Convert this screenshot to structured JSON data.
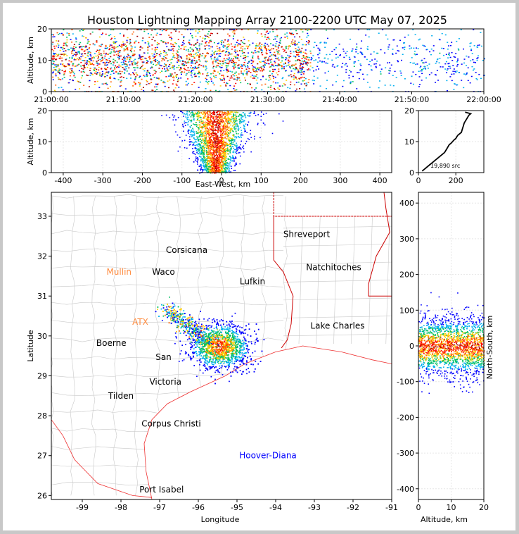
{
  "title": "Houston Lightning Mapping Array 2100-2200 UTC May 07, 2025",
  "colors": {
    "frame_bg": "#c8c8c8",
    "axes": "#000000",
    "grid": "#e6e6e6",
    "county": "#c8c8c8",
    "state_border": "#cc0000",
    "coast": "#ee3030",
    "city_default": "#000000",
    "city_highlight": "#ff8c40",
    "city_special": "#0000ff",
    "source_palette": [
      "#0000ff",
      "#00b0f0",
      "#00c060",
      "#ffd000",
      "#ff6000",
      "#ff0000",
      "#a00000"
    ]
  },
  "chart_data": [
    {
      "type": "scatter",
      "id": "time_altitude",
      "xlabel": "",
      "ylabel": "Altitude, km",
      "xticks": [
        "21:00:00",
        "21:10:00",
        "21:20:00",
        "21:30:00",
        "21:40:00",
        "21:50:00",
        "22:00:00"
      ],
      "xlim_minutes": [
        0,
        60
      ],
      "ylim": [
        0,
        20
      ],
      "yticks": [
        0,
        10,
        20
      ],
      "activity_bands_minutes": [
        [
          0,
          36
        ],
        [
          36,
          60
        ]
      ],
      "activity_level": [
        "high",
        "sparse"
      ]
    },
    {
      "type": "scatter",
      "id": "eastwest_altitude",
      "xlabel": "East-West, km",
      "ylabel": "Altitude, km",
      "xlim": [
        -430,
        430
      ],
      "xticks": [
        -400,
        -300,
        -200,
        -100,
        0,
        100,
        200,
        300,
        400
      ],
      "ylim": [
        0,
        20
      ],
      "yticks": [
        0,
        10,
        20
      ],
      "source_center_x": -15,
      "source_spread_x": 60
    },
    {
      "type": "line",
      "id": "altitude_histogram",
      "xlim": [
        0,
        350
      ],
      "xticks": [
        0,
        200
      ],
      "ylim": [
        0,
        20
      ],
      "yticks": [
        0,
        10,
        20
      ],
      "annotation": "19,890 src",
      "x": [
        20,
        40,
        60,
        80,
        100,
        120,
        140,
        150,
        160,
        165,
        175,
        190,
        200,
        210,
        220,
        230,
        235,
        240,
        245,
        250,
        260,
        270,
        280,
        250
      ],
      "y": [
        0.5,
        1.5,
        2.5,
        3.5,
        4.5,
        5.5,
        6.5,
        7.5,
        8.5,
        9.0,
        9.5,
        10.5,
        11.0,
        12.0,
        12.5,
        13.0,
        14.0,
        15.0,
        16.0,
        16.5,
        17.5,
        18.5,
        19.0,
        19.5
      ]
    },
    {
      "type": "scatter",
      "id": "plan_view",
      "xlabel": "Longitude",
      "ylabel": "Latitude",
      "xlim": [
        -99.8,
        -91
      ],
      "ylim": [
        25.9,
        33.6
      ],
      "xticks": [
        -99,
        -98,
        -97,
        -96,
        -95,
        -94,
        -93,
        -92,
        -91
      ],
      "yticks": [
        26,
        27,
        28,
        29,
        30,
        31,
        32,
        33
      ],
      "cities": [
        {
          "name": "Shreveport",
          "lon": -93.2,
          "lat": 32.55,
          "style": "default"
        },
        {
          "name": "Corsicana",
          "lon": -96.3,
          "lat": 32.15,
          "style": "default"
        },
        {
          "name": "Natchitoches",
          "lon": -92.5,
          "lat": 31.72,
          "style": "default"
        },
        {
          "name": "Mullin",
          "lon": -98.05,
          "lat": 31.6,
          "style": "highlight"
        },
        {
          "name": "Waco",
          "lon": -96.9,
          "lat": 31.6,
          "style": "default"
        },
        {
          "name": "Lufkin",
          "lon": -94.6,
          "lat": 31.37,
          "style": "default"
        },
        {
          "name": "ATX",
          "lon": -97.5,
          "lat": 30.35,
          "style": "highlight"
        },
        {
          "name": "Lake Charles",
          "lon": -92.4,
          "lat": 30.25,
          "style": "default"
        },
        {
          "name": "Boerne",
          "lon": -98.25,
          "lat": 29.82,
          "style": "default"
        },
        {
          "name": "San",
          "lon": -96.9,
          "lat": 29.47,
          "style": "default"
        },
        {
          "name": "Victoria",
          "lon": -96.85,
          "lat": 28.85,
          "style": "default"
        },
        {
          "name": "Tilden",
          "lon": -98.0,
          "lat": 28.5,
          "style": "default"
        },
        {
          "name": "Corpus Christi",
          "lon": -96.7,
          "lat": 27.8,
          "style": "default"
        },
        {
          "name": "Hoover-Diana",
          "lon": -94.2,
          "lat": 27.0,
          "style": "special"
        },
        {
          "name": "Port Isabel",
          "lon": -96.95,
          "lat": 26.15,
          "style": "default"
        }
      ],
      "source_center": [
        -95.45,
        29.75
      ]
    },
    {
      "type": "scatter",
      "id": "altitude_northsouth",
      "xlabel": "Altitude, km",
      "ylabel": "North-South, km",
      "xlim": [
        0,
        20
      ],
      "xticks": [
        0,
        10,
        20
      ],
      "ylim": [
        -430,
        430
      ],
      "yticks": [
        -400,
        -300,
        -200,
        -100,
        0,
        100,
        200,
        300,
        400
      ],
      "source_center_y": 0,
      "source_spread_y": 60
    }
  ]
}
